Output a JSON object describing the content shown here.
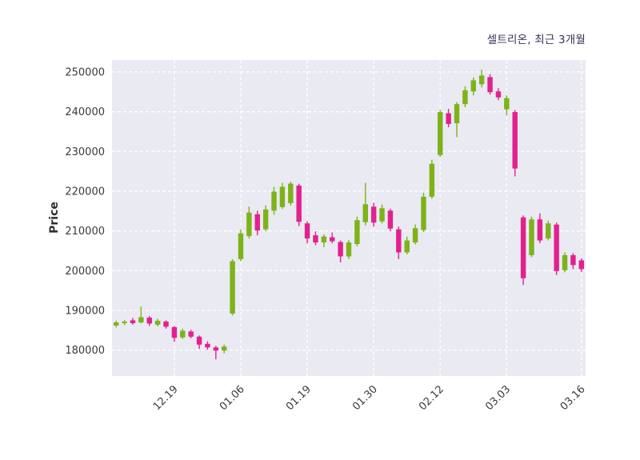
{
  "header": {
    "title": "셀트리온, 최근 3개월"
  },
  "colors": {
    "up": "#7db319",
    "down": "#e2218e",
    "plot_bg": "#eaeaf2",
    "grid": "#ffffff",
    "title": "#333355",
    "tick": "#3a3a3a",
    "axis_label": "#2e2e2e"
  },
  "chart_data": {
    "type": "candlestick",
    "title": "셀트리온, 최근 3개월",
    "ylabel": "Price",
    "xlabel": "",
    "grid": true,
    "legend": "none",
    "ylim": [
      173500,
      253000
    ],
    "yticks": [
      180000,
      190000,
      200000,
      210000,
      220000,
      230000,
      240000,
      250000
    ],
    "xticks": [
      {
        "i": 7,
        "label": "12.19"
      },
      {
        "i": 15,
        "label": "01.06"
      },
      {
        "i": 23,
        "label": "01.19"
      },
      {
        "i": 31,
        "label": "01.30"
      },
      {
        "i": 39,
        "label": "02.12"
      },
      {
        "i": 47,
        "label": "03.03"
      },
      {
        "i": 56,
        "label": "03.16"
      }
    ],
    "ohlc_format": [
      "open",
      "high",
      "low",
      "close"
    ],
    "candles": [
      [
        186200,
        187400,
        185700,
        187000
      ],
      [
        186800,
        187600,
        186300,
        187200
      ],
      [
        187500,
        188100,
        186400,
        186800
      ],
      [
        187000,
        191000,
        186700,
        188300
      ],
      [
        188200,
        188600,
        186100,
        186700
      ],
      [
        186400,
        187900,
        186000,
        187400
      ],
      [
        187200,
        187500,
        185400,
        185900
      ],
      [
        185800,
        186100,
        182100,
        183100
      ],
      [
        183200,
        185400,
        182800,
        184900
      ],
      [
        184700,
        185100,
        183000,
        183400
      ],
      [
        183400,
        183700,
        180300,
        181400
      ],
      [
        181600,
        182200,
        180100,
        180700
      ],
      [
        180700,
        181100,
        177700,
        179900
      ],
      [
        179900,
        181400,
        179200,
        180900
      ],
      [
        189200,
        202900,
        188700,
        202400
      ],
      [
        202900,
        210400,
        202400,
        209400
      ],
      [
        208700,
        216100,
        208100,
        214600
      ],
      [
        214200,
        215100,
        208900,
        210100
      ],
      [
        210400,
        216400,
        209900,
        215400
      ],
      [
        215100,
        221100,
        214100,
        219900
      ],
      [
        216000,
        222100,
        215500,
        221100
      ],
      [
        217000,
        222400,
        216400,
        221900
      ],
      [
        221400,
        221900,
        211200,
        212300
      ],
      [
        211900,
        212400,
        206900,
        208100
      ],
      [
        208900,
        209900,
        206400,
        207100
      ],
      [
        207100,
        209100,
        205900,
        208600
      ],
      [
        208400,
        209600,
        206900,
        207400
      ],
      [
        207200,
        207600,
        202100,
        203600
      ],
      [
        203600,
        207700,
        202900,
        207100
      ],
      [
        206700,
        213600,
        206100,
        212700
      ],
      [
        212200,
        222100,
        211400,
        216700
      ],
      [
        216100,
        217100,
        211100,
        212100
      ],
      [
        212400,
        216600,
        211900,
        215700
      ],
      [
        215100,
        215600,
        209900,
        210600
      ],
      [
        210400,
        211100,
        202900,
        204600
      ],
      [
        204600,
        208600,
        204100,
        207600
      ],
      [
        207100,
        211600,
        206600,
        210700
      ],
      [
        210200,
        219600,
        209700,
        218600
      ],
      [
        218600,
        227900,
        218100,
        226900
      ],
      [
        229100,
        240400,
        228600,
        239900
      ],
      [
        239600,
        240700,
        236100,
        236900
      ],
      [
        237100,
        242400,
        233600,
        241900
      ],
      [
        241900,
        246400,
        241100,
        245400
      ],
      [
        245100,
        248600,
        244100,
        247900
      ],
      [
        246900,
        250600,
        246100,
        249100
      ],
      [
        248700,
        249400,
        244300,
        244900
      ],
      [
        245100,
        245900,
        242900,
        243600
      ],
      [
        240600,
        244100,
        239100,
        243400
      ],
      [
        239900,
        240400,
        223700,
        225700
      ],
      [
        213400,
        213900,
        196400,
        198100
      ],
      [
        203900,
        213600,
        203400,
        212900
      ],
      [
        212900,
        214400,
        206900,
        207600
      ],
      [
        208100,
        212600,
        207600,
        211900
      ],
      [
        211600,
        212100,
        198900,
        199900
      ],
      [
        200100,
        204600,
        199600,
        203900
      ],
      [
        203900,
        204400,
        200400,
        201400
      ],
      [
        202600,
        203100,
        199700,
        200400
      ]
    ]
  }
}
